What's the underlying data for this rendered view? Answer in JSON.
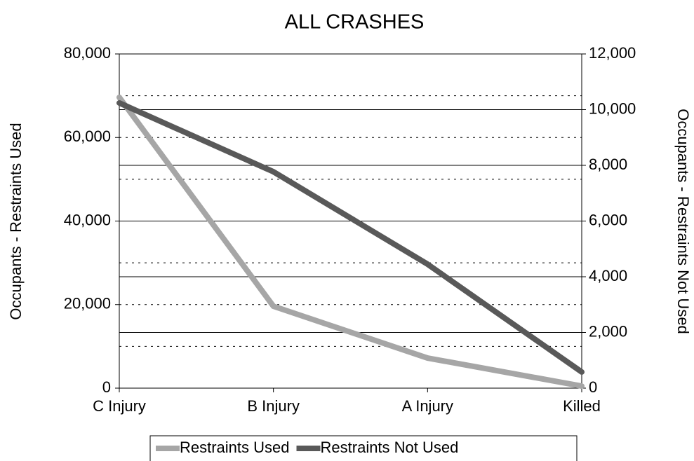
{
  "chart_data": {
    "type": "line",
    "title": "ALL CRASHES",
    "y_label": "Occupants - Restraints Used",
    "y2_label": "Occupants - Restraints Not Used",
    "categories": [
      "C Injury",
      "B Injury",
      "A Injury",
      "Killed"
    ],
    "series": [
      {
        "name": "Restraints Used",
        "color": "#a6a6a6",
        "values": [
          69600,
          19600,
          7200,
          500
        ]
      },
      {
        "name": "Restraints Not Used",
        "color": "#595959",
        "axis": "y2",
        "values": [
          10240,
          7770,
          4450,
          580
        ]
      }
    ],
    "ylim": [
      0,
      80000
    ],
    "yticks": [
      {
        "value": 0,
        "label": "0"
      },
      {
        "value": 20000,
        "label": "20,000"
      },
      {
        "value": 40000,
        "label": "40,000"
      },
      {
        "value": 60000,
        "label": "60,000"
      },
      {
        "value": 80000,
        "label": "80,000"
      }
    ],
    "ygrid": [
      10000,
      20000,
      30000,
      40000,
      50000,
      60000,
      70000
    ],
    "y2lim": [
      0,
      12000
    ],
    "y2ticks": [
      {
        "value": 0,
        "label": "0"
      },
      {
        "value": 2000,
        "label": "2,000"
      },
      {
        "value": 4000,
        "label": "4,000"
      },
      {
        "value": 6000,
        "label": "6,000"
      },
      {
        "value": 8000,
        "label": "8,000"
      },
      {
        "value": 10000,
        "label": "10,000"
      },
      {
        "value": 12000,
        "label": "12,000"
      }
    ],
    "y2grid": true,
    "legend": "bottom"
  }
}
